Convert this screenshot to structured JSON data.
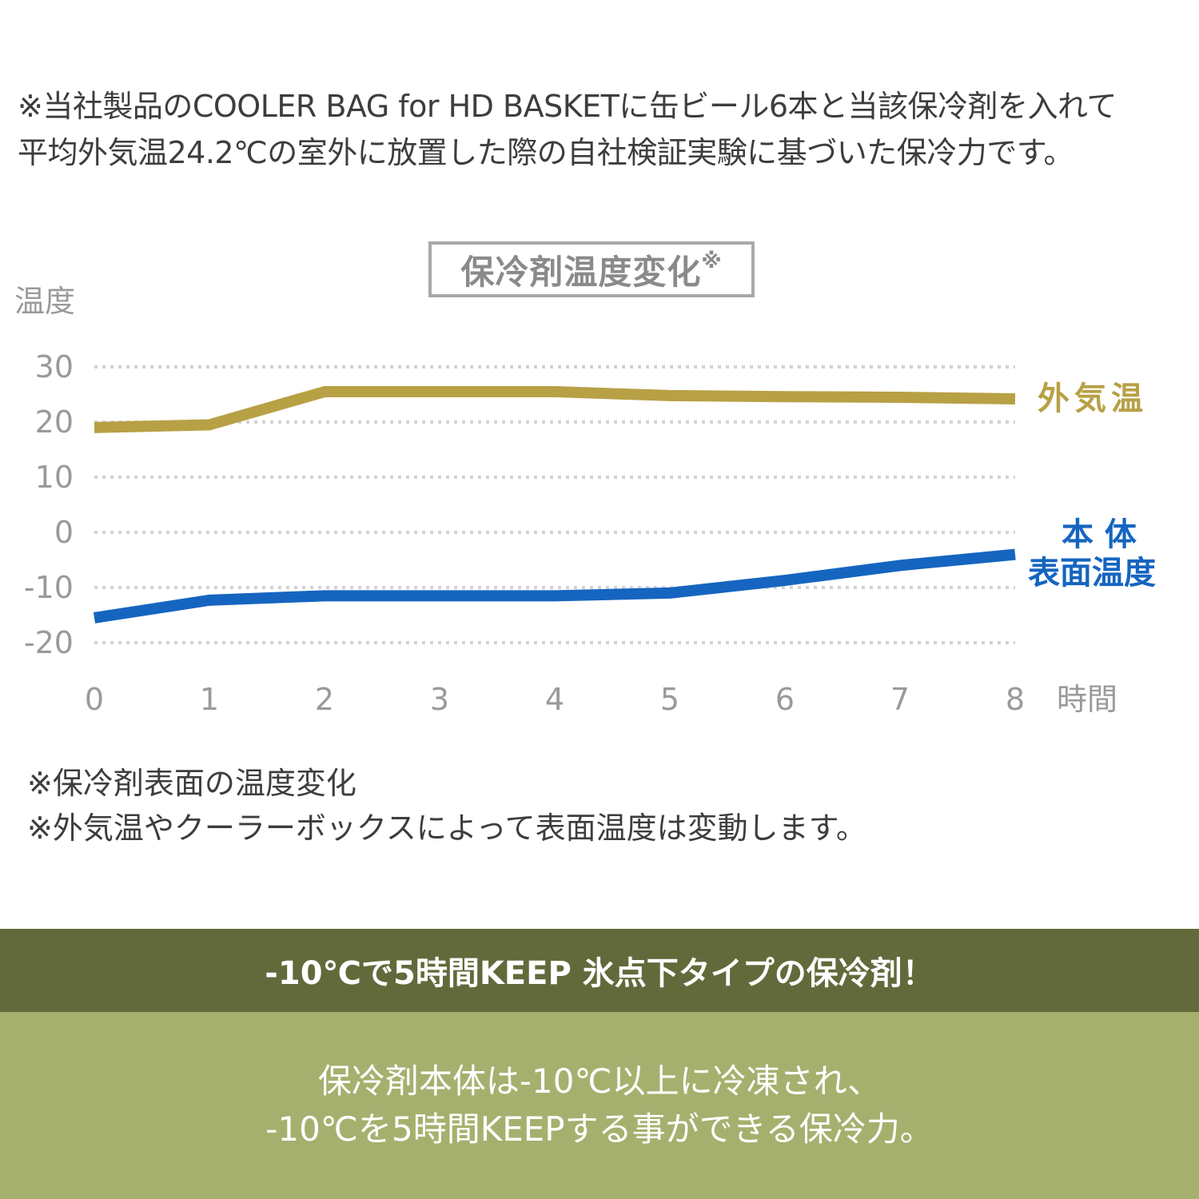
{
  "top_note": {
    "line1": "※当社製品のCOOLER BAG for HD BASKETに缶ビール6本と当該保冷剤を入れて",
    "line2": "平均外気温24.2℃の室外に放置した際の自社検証実験に基づいた保冷力です。"
  },
  "chart_data": {
    "type": "line",
    "title": "保冷剤温度変化",
    "title_mark": "※",
    "ylabel": "温度",
    "xlabel": "時間",
    "x": [
      0,
      1,
      2,
      3,
      4,
      5,
      6,
      7,
      8
    ],
    "x_tick_labels": [
      "0",
      "1",
      "2",
      "3",
      "4",
      "5",
      "6",
      "7",
      "8"
    ],
    "ylim": [
      -20,
      30
    ],
    "y_ticks": [
      30,
      20,
      10,
      0,
      -10,
      -20
    ],
    "y_tick_labels": [
      "30",
      "20",
      "10",
      "0",
      "-10",
      "-20"
    ],
    "grid": "dotted horizontal",
    "series": [
      {
        "name": "外気温",
        "color": "#b8a045",
        "values": [
          19,
          19.5,
          25.5,
          25.5,
          25.5,
          24.8,
          24.6,
          24.5,
          24.2
        ]
      },
      {
        "name": "本 体\n表面温度",
        "name_line1": "本 体",
        "name_line2": "表面温度",
        "color": "#1565c0",
        "values": [
          -15.5,
          -12.3,
          -11.5,
          -11.5,
          -11.5,
          -11.0,
          -8.7,
          -6.0,
          -4.0
        ]
      }
    ]
  },
  "bottom_note": {
    "line1": "※保冷剤表面の温度変化",
    "line2": "※外気温やクーラーボックスによって表面温度は変動します。"
  },
  "banner": {
    "headline": "-10℃で5時間KEEP 氷点下タイプの保冷剤！",
    "body_line1": "保冷剤本体は-10℃以上に冷凍され、",
    "body_line2": "-10℃を5時間KEEPする事ができる保冷力。",
    "dark_color": "#626a3b",
    "light_color": "#a6b06e"
  }
}
